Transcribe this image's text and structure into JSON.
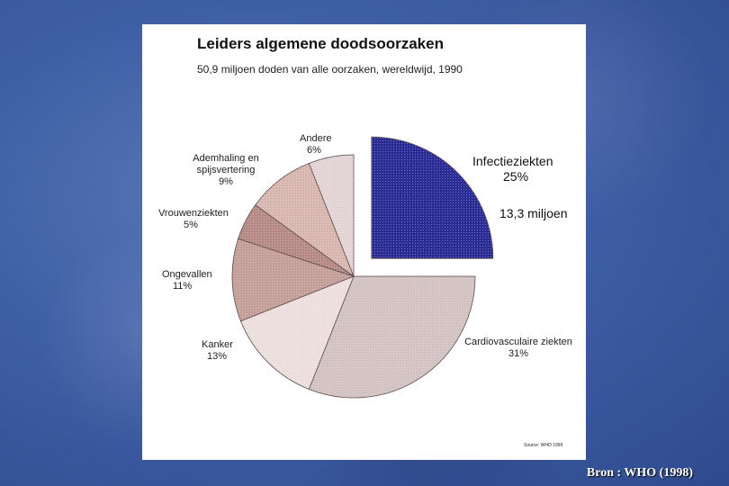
{
  "slide": {
    "credit": "Bron : WHO (1998)"
  },
  "chart_data": {
    "type": "pie",
    "title": "Leiders algemene doodsoorzaken",
    "subtitle": "50,9 miljoen doden van alle oorzaken, wereldwijd, 1990",
    "source": "Source: WHO 1999",
    "slices": [
      {
        "label": "Infectieziekten",
        "value": 25,
        "display": "25%",
        "note": "13,3 miljoen",
        "color": "#2b2b96",
        "exploded": true
      },
      {
        "label": "Cardiovasculaire ziekten",
        "value": 31,
        "display": "31%",
        "color": "#d2c2c2"
      },
      {
        "label": "Kanker",
        "value": 13,
        "display": "13%",
        "color": "#ecdedd"
      },
      {
        "label": "Ongevallen",
        "value": 11,
        "display": "11%",
        "color": "#c49e98"
      },
      {
        "label": "Vrouwenziekten",
        "value": 5,
        "display": "5%",
        "color": "#b58a86"
      },
      {
        "label": "Ademhaling en spijsvertering",
        "value": 9,
        "display": "9%",
        "color": "#d8b6b0"
      },
      {
        "label": "Andere",
        "value": 6,
        "display": "6%",
        "color": "#e2d4d4"
      }
    ]
  }
}
